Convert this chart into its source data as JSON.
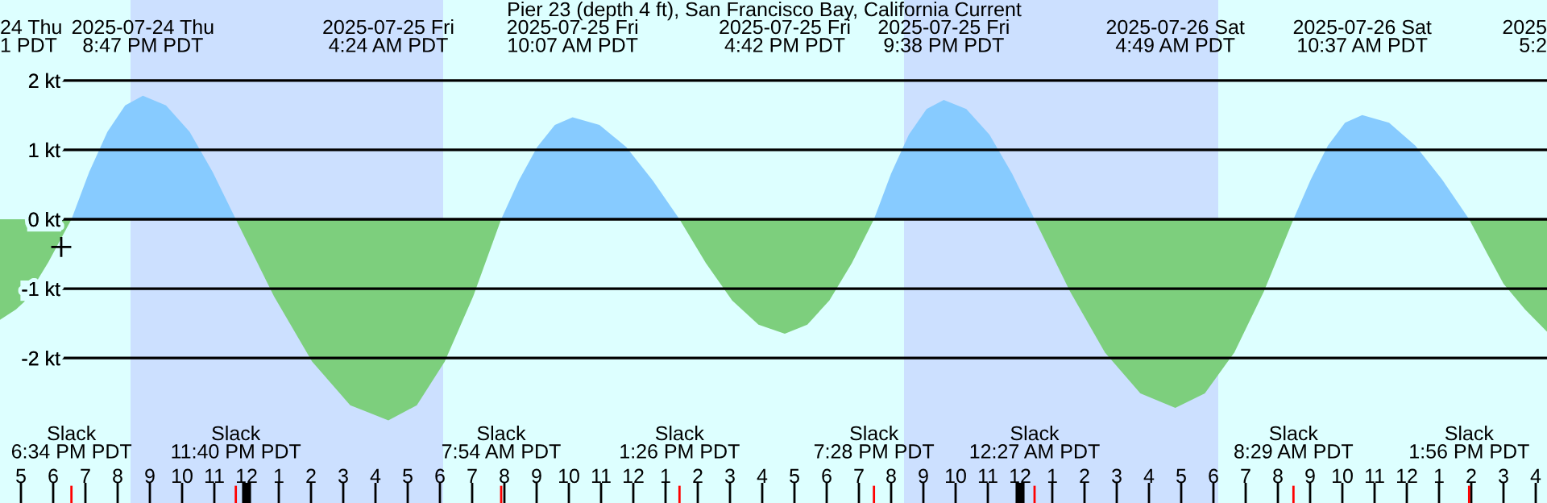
{
  "chart_data": {
    "type": "area",
    "title": "Pier 23 (depth 4 ft), San Francisco Bay, California Current",
    "series": [
      {
        "color": "#87cbff",
        "x": [
          "2025-07-24T18:34",
          "2025-07-24T19:07",
          "2025-07-24T19:41",
          "2025-07-24T20:14",
          "2025-07-24T20:47",
          "2025-07-24T21:30",
          "2025-07-24T22:14",
          "2025-07-24T22:57",
          "2025-07-24T23:40",
          "2025-07-25T04:24",
          "2025-07-25T07:54",
          "2025-07-25T08:27",
          "2025-07-25T09:01",
          "2025-07-25T09:34",
          "2025-07-25T10:07",
          "2025-07-25T10:57",
          "2025-07-25T11:47",
          "2025-07-25T12:36",
          "2025-07-25T13:26",
          "2025-07-25T16:42",
          "2025-07-25T19:28",
          "2025-07-25T20:00",
          "2025-07-25T20:33",
          "2025-07-25T21:06",
          "2025-07-25T21:38",
          "2025-07-25T22:20",
          "2025-07-25T23:03",
          "2025-07-25T23:45",
          "2025-07-26T00:27",
          "2025-07-26T04:49",
          "2025-07-26T08:29",
          "2025-07-26T09:01",
          "2025-07-26T09:33",
          "2025-07-26T10:05",
          "2025-07-26T10:37",
          "2025-07-26T11:27",
          "2025-07-26T12:16",
          "2025-07-26T13:06",
          "2025-07-26T13:56"
        ],
        "values": [
          0,
          0.68,
          1.26,
          1.64,
          1.78,
          1.64,
          1.26,
          0.68,
          0,
          null,
          0,
          0.56,
          1.04,
          1.36,
          1.47,
          1.36,
          1.04,
          0.56,
          0,
          null,
          0,
          0.66,
          1.22,
          1.59,
          1.72,
          1.59,
          1.22,
          0.66,
          0,
          null,
          0,
          0.57,
          1.06,
          1.39,
          1.5,
          1.39,
          1.06,
          0.57,
          0
        ]
      },
      {
        "color": "#7dcf7d",
        "x": [
          "2025-07-24T16:21",
          "2025-07-24T16:51",
          "2025-07-24T17:06",
          "2025-07-24T17:51",
          "2025-07-24T18:34",
          "2025-07-24T20:47",
          "2025-07-24T23:40",
          "2025-07-25T00:51",
          "2025-07-25T02:02",
          "2025-07-25T03:13",
          "2025-07-25T04:24",
          "2025-07-25T05:17",
          "2025-07-25T06:09",
          "2025-07-25T07:02",
          "2025-07-25T07:54",
          "2025-07-25T10:07",
          "2025-07-25T13:26",
          "2025-07-25T14:15",
          "2025-07-25T15:04",
          "2025-07-25T15:53",
          "2025-07-25T16:42",
          "2025-07-25T17:24",
          "2025-07-25T18:05",
          "2025-07-25T18:47",
          "2025-07-25T19:28",
          "2025-07-25T21:38",
          "2025-07-26T00:27",
          "2025-07-26T01:33",
          "2025-07-26T02:38",
          "2025-07-26T03:44",
          "2025-07-26T04:49",
          "2025-07-26T05:44",
          "2025-07-26T06:39",
          "2025-07-26T07:34",
          "2025-07-26T08:29",
          "2025-07-26T10:37",
          "2025-07-26T13:56",
          "2025-07-26T14:30",
          "2025-07-26T15:00",
          "2025-07-26T15:40",
          "2025-07-26T16:21"
        ],
        "values": [
          -1.45,
          -1.3,
          -1.19,
          -0.62,
          0,
          null,
          0,
          -1.11,
          -2.05,
          -2.68,
          -2.9,
          -2.68,
          -2.05,
          -1.11,
          0,
          null,
          0,
          -0.63,
          -1.17,
          -1.52,
          -1.65,
          -1.52,
          -1.17,
          -0.63,
          0,
          null,
          0,
          -1.04,
          -1.92,
          -2.51,
          -2.72,
          -2.51,
          -1.92,
          -1.04,
          0,
          null,
          0,
          -0.5,
          -0.93,
          -1.3,
          -1.62
        ]
      },
      {
        "type": "scatter",
        "color": "#000000",
        "marker": "cross",
        "x": [
          "2025-07-24T18:15"
        ],
        "values": [
          -0.4
        ]
      }
    ],
    "xlim": [
      "2025-07-24T16:21",
      "2025-07-26T16:21"
    ],
    "ylim": [
      -4.09,
      3.16
    ],
    "yticks": [
      {
        "value": 2,
        "label": "2 kt"
      },
      {
        "value": 1,
        "label": "1 kt"
      },
      {
        "value": 0,
        "label": "0 kt"
      },
      {
        "value": -1,
        "label": "-1 kt"
      },
      {
        "value": -2,
        "label": "-2 kt"
      }
    ],
    "xticks": [
      {
        "value": "2025-07-24T17:00",
        "label": "5"
      },
      {
        "value": "2025-07-24T18:00",
        "label": "6"
      },
      {
        "value": "2025-07-24T19:00",
        "label": "7"
      },
      {
        "value": "2025-07-24T20:00",
        "label": "8"
      },
      {
        "value": "2025-07-24T21:00",
        "label": "9"
      },
      {
        "value": "2025-07-24T22:00",
        "label": "10"
      },
      {
        "value": "2025-07-24T23:00",
        "label": "11"
      },
      {
        "value": "2025-07-25T00:00",
        "label": "12"
      },
      {
        "value": "2025-07-25T01:00",
        "label": "1"
      },
      {
        "value": "2025-07-25T02:00",
        "label": "2"
      },
      {
        "value": "2025-07-25T03:00",
        "label": "3"
      },
      {
        "value": "2025-07-25T04:00",
        "label": "4"
      },
      {
        "value": "2025-07-25T05:00",
        "label": "5"
      },
      {
        "value": "2025-07-25T06:00",
        "label": "6"
      },
      {
        "value": "2025-07-25T07:00",
        "label": "7"
      },
      {
        "value": "2025-07-25T08:00",
        "label": "8"
      },
      {
        "value": "2025-07-25T09:00",
        "label": "9"
      },
      {
        "value": "2025-07-25T10:00",
        "label": "10"
      },
      {
        "value": "2025-07-25T11:00",
        "label": "11"
      },
      {
        "value": "2025-07-25T12:00",
        "label": "12"
      },
      {
        "value": "2025-07-25T13:00",
        "label": "1"
      },
      {
        "value": "2025-07-25T14:00",
        "label": "2"
      },
      {
        "value": "2025-07-25T15:00",
        "label": "3"
      },
      {
        "value": "2025-07-25T16:00",
        "label": "4"
      },
      {
        "value": "2025-07-25T17:00",
        "label": "5"
      },
      {
        "value": "2025-07-25T18:00",
        "label": "6"
      },
      {
        "value": "2025-07-25T19:00",
        "label": "7"
      },
      {
        "value": "2025-07-25T20:00",
        "label": "8"
      },
      {
        "value": "2025-07-25T21:00",
        "label": "9"
      },
      {
        "value": "2025-07-25T22:00",
        "label": "10"
      },
      {
        "value": "2025-07-25T23:00",
        "label": "11"
      },
      {
        "value": "2025-07-26T00:00",
        "label": "12"
      },
      {
        "value": "2025-07-26T01:00",
        "label": "1"
      },
      {
        "value": "2025-07-26T02:00",
        "label": "2"
      },
      {
        "value": "2025-07-26T03:00",
        "label": "3"
      },
      {
        "value": "2025-07-26T04:00",
        "label": "4"
      },
      {
        "value": "2025-07-26T05:00",
        "label": "5"
      },
      {
        "value": "2025-07-26T06:00",
        "label": "6"
      },
      {
        "value": "2025-07-26T07:00",
        "label": "7"
      },
      {
        "value": "2025-07-26T08:00",
        "label": "8"
      },
      {
        "value": "2025-07-26T09:00",
        "label": "9"
      },
      {
        "value": "2025-07-26T10:00",
        "label": "10"
      },
      {
        "value": "2025-07-26T11:00",
        "label": "11"
      },
      {
        "value": "2025-07-26T12:00",
        "label": "12"
      },
      {
        "value": "2025-07-26T13:00",
        "label": "1"
      },
      {
        "value": "2025-07-26T14:00",
        "label": "2"
      },
      {
        "value": "2025-07-26T15:00",
        "label": "3"
      },
      {
        "value": "2025-07-26T16:00",
        "label": "4"
      }
    ],
    "grid": "y",
    "bands": [
      {
        "axis": "x",
        "from": "2025-07-24T20:24",
        "to": "2025-07-25T06:06",
        "color": "#cce0ff"
      },
      {
        "axis": "x",
        "from": "2025-07-25T20:24",
        "to": "2025-07-26T06:09",
        "color": "#cce0ff"
      }
    ],
    "annotations": [
      "24 Thu\n1 PDT",
      "2025-07-24 Thu\n8:47 PM PDT",
      "2025-07-25 Fri\n4:24 AM PDT",
      "2025-07-25 Fri\n10:07 AM PDT",
      "2025-07-25 Fri\n4:42 PM PDT",
      "2025-07-25 Fri\n9:38 PM PDT",
      "2025-07-26 Sat\n4:49 AM PDT",
      "2025-07-26 Sat\n10:37 AM PDT",
      "2025\n5:2",
      "Slack\n6:34 PM PDT",
      "Slack\n11:40 PM PDT",
      "Slack\n7:54 AM PDT",
      "Slack\n1:26 PM PDT",
      "Slack\n7:28 PM PDT",
      "Slack\n12:27 AM PDT",
      "Slack\n8:29 AM PDT",
      "Slack\n1:56 PM PDT"
    ]
  }
}
